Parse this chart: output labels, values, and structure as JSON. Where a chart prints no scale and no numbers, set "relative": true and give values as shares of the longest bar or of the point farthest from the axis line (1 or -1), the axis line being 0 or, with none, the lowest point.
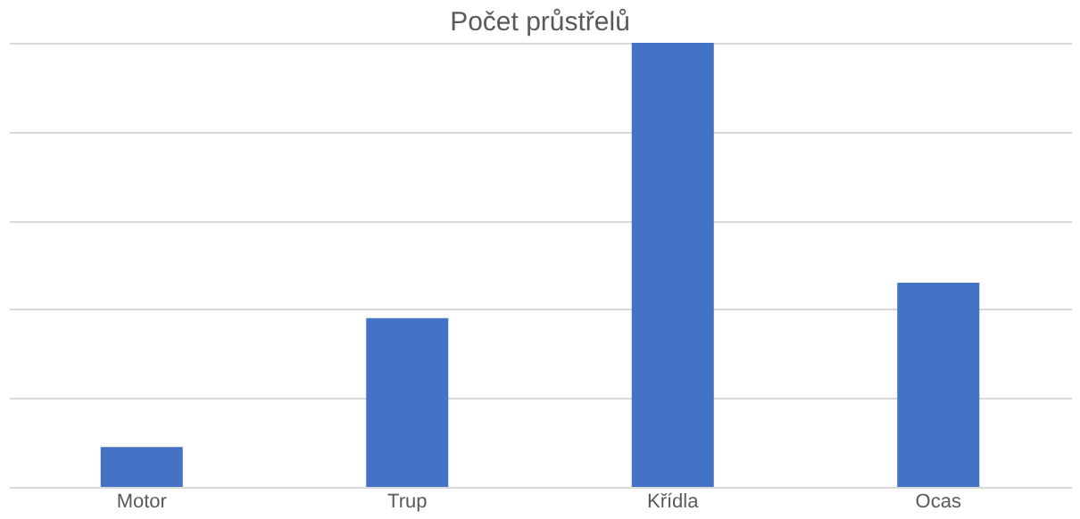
{
  "chart_data": {
    "type": "bar",
    "title": "Počet průstřelů",
    "relative": true,
    "grid": "y",
    "color": "#4472c4",
    "categories": [
      "Motor",
      "Trup",
      "Křídla",
      "Ocas"
    ],
    "values": [
      0.09,
      0.38,
      1,
      0.46
    ]
  }
}
